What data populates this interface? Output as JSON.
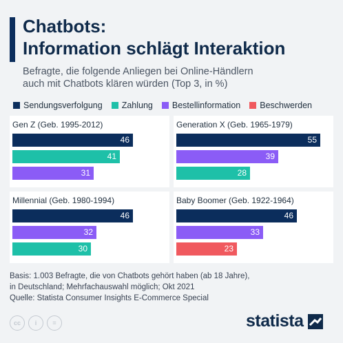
{
  "title_line1": "Chatbots:",
  "title_line2": "Information schlägt Interaktion",
  "subtitle_line1": "Befragte, die folgende Anliegen bei Online-Händlern",
  "subtitle_line2": "auch mit Chatbots klären würden (Top 3, in %)",
  "legend": [
    {
      "label": "Sendungsverfolgung",
      "color": "#0b2d5c"
    },
    {
      "label": "Zahlung",
      "color": "#1ec0a8"
    },
    {
      "label": "Bestellinformation",
      "color": "#8b5cf6"
    },
    {
      "label": "Beschwerden",
      "color": "#f0595e"
    }
  ],
  "chart_data": {
    "type": "bar",
    "xlim": [
      0,
      60
    ],
    "panels": [
      {
        "title": "Gen Z (Geb. 1995-2012)",
        "bars": [
          {
            "category": "Sendungsverfolgung",
            "value": 46,
            "color": "#0b2d5c"
          },
          {
            "category": "Zahlung",
            "value": 41,
            "color": "#1ec0a8"
          },
          {
            "category": "Bestellinformation",
            "value": 31,
            "color": "#8b5cf6"
          }
        ]
      },
      {
        "title": "Generation X (Geb. 1965-1979)",
        "bars": [
          {
            "category": "Sendungsverfolgung",
            "value": 55,
            "color": "#0b2d5c"
          },
          {
            "category": "Bestellinformation",
            "value": 39,
            "color": "#8b5cf6"
          },
          {
            "category": "Zahlung",
            "value": 28,
            "color": "#1ec0a8"
          }
        ]
      },
      {
        "title": "Millennial (Geb. 1980-1994)",
        "bars": [
          {
            "category": "Sendungsverfolgung",
            "value": 46,
            "color": "#0b2d5c"
          },
          {
            "category": "Bestellinformation",
            "value": 32,
            "color": "#8b5cf6"
          },
          {
            "category": "Zahlung",
            "value": 30,
            "color": "#1ec0a8"
          }
        ]
      },
      {
        "title": "Baby Boomer (Geb. 1922-1964)",
        "bars": [
          {
            "category": "Sendungsverfolgung",
            "value": 46,
            "color": "#0b2d5c"
          },
          {
            "category": "Bestellinformation",
            "value": 33,
            "color": "#8b5cf6"
          },
          {
            "category": "Beschwerden",
            "value": 23,
            "color": "#f0595e"
          }
        ]
      }
    ]
  },
  "footer_line1": "Basis: 1.003 Befragte, die von Chatbots gehört haben (ab 18 Jahre),",
  "footer_line2": "in Deutschland; Mehrfachauswahl möglich; Okt 2021",
  "footer_line3": "Quelle: Statista Consumer Insights E-Commerce Special",
  "license_icons": [
    "cc",
    "i",
    "="
  ],
  "logo": "statista"
}
